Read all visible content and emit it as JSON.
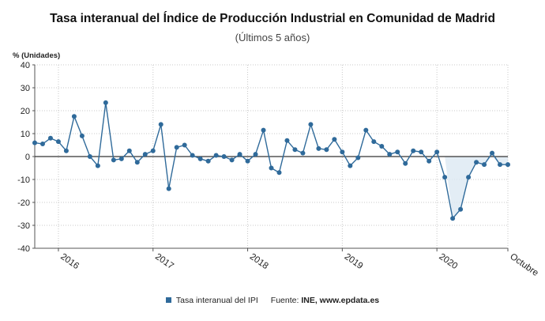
{
  "header": {
    "title": "Tasa interanual del Índice de Producción Industrial en Comunidad de Madrid",
    "subtitle": "(Últimos 5 años)"
  },
  "legend": {
    "series_label": "Tasa interanual del IPI",
    "source_prefix": "Fuente: ",
    "source_text": "INE, www.epdata.es"
  },
  "colors": {
    "series": "#2f6a9a",
    "zero_line": "#333333",
    "grid": "#c8c8c8",
    "fill": "#dce8f3"
  },
  "chart_data": {
    "type": "line",
    "title": "Tasa interanual del Índice de Producción Industrial en Comunidad de Madrid",
    "subtitle": "(Últimos 5 años)",
    "ylabel": "% (Unidades)",
    "ylim": [
      -40,
      40
    ],
    "yticks": [
      40,
      30,
      20,
      10,
      0,
      -10,
      -20,
      -30,
      -40
    ],
    "grid": true,
    "xtick_labels": [
      "2016",
      "2017",
      "2018",
      "2019",
      "2020",
      "Octubre"
    ],
    "series": [
      {
        "name": "Tasa interanual del IPI",
        "x": [
          "2015-10",
          "2015-11",
          "2015-12",
          "2016-01",
          "2016-02",
          "2016-03",
          "2016-04",
          "2016-05",
          "2016-06",
          "2016-07",
          "2016-08",
          "2016-09",
          "2016-10",
          "2016-11",
          "2016-12",
          "2017-01",
          "2017-02",
          "2017-03",
          "2017-04",
          "2017-05",
          "2017-06",
          "2017-07",
          "2017-08",
          "2017-09",
          "2017-10",
          "2017-11",
          "2017-12",
          "2018-01",
          "2018-02",
          "2018-03",
          "2018-04",
          "2018-05",
          "2018-06",
          "2018-07",
          "2018-08",
          "2018-09",
          "2018-10",
          "2018-11",
          "2018-12",
          "2019-01",
          "2019-02",
          "2019-03",
          "2019-04",
          "2019-05",
          "2019-06",
          "2019-07",
          "2019-08",
          "2019-09",
          "2019-10",
          "2019-11",
          "2019-12",
          "2020-01",
          "2020-02",
          "2020-03",
          "2020-04",
          "2020-05",
          "2020-06",
          "2020-07",
          "2020-08",
          "2020-09",
          "2020-10"
        ],
        "values": [
          6,
          5.5,
          8,
          6.5,
          2.5,
          17.5,
          9,
          0,
          -4,
          23.5,
          -1.5,
          -1,
          2.5,
          -2.5,
          1,
          2.5,
          14,
          -14,
          4,
          5,
          0.5,
          -1,
          -2,
          0.5,
          0,
          -1.5,
          1,
          -2,
          1,
          11.5,
          -5,
          -7,
          7,
          3,
          1.5,
          14,
          3.5,
          3,
          7.5,
          2,
          -4,
          -0.5,
          11.5,
          6.5,
          4.5,
          1,
          2,
          -3,
          2.5,
          2,
          -2,
          2,
          -9,
          -27,
          -23,
          -9,
          -2.5,
          -3.5,
          1.5,
          -3.5,
          -3.5
        ]
      }
    ]
  }
}
